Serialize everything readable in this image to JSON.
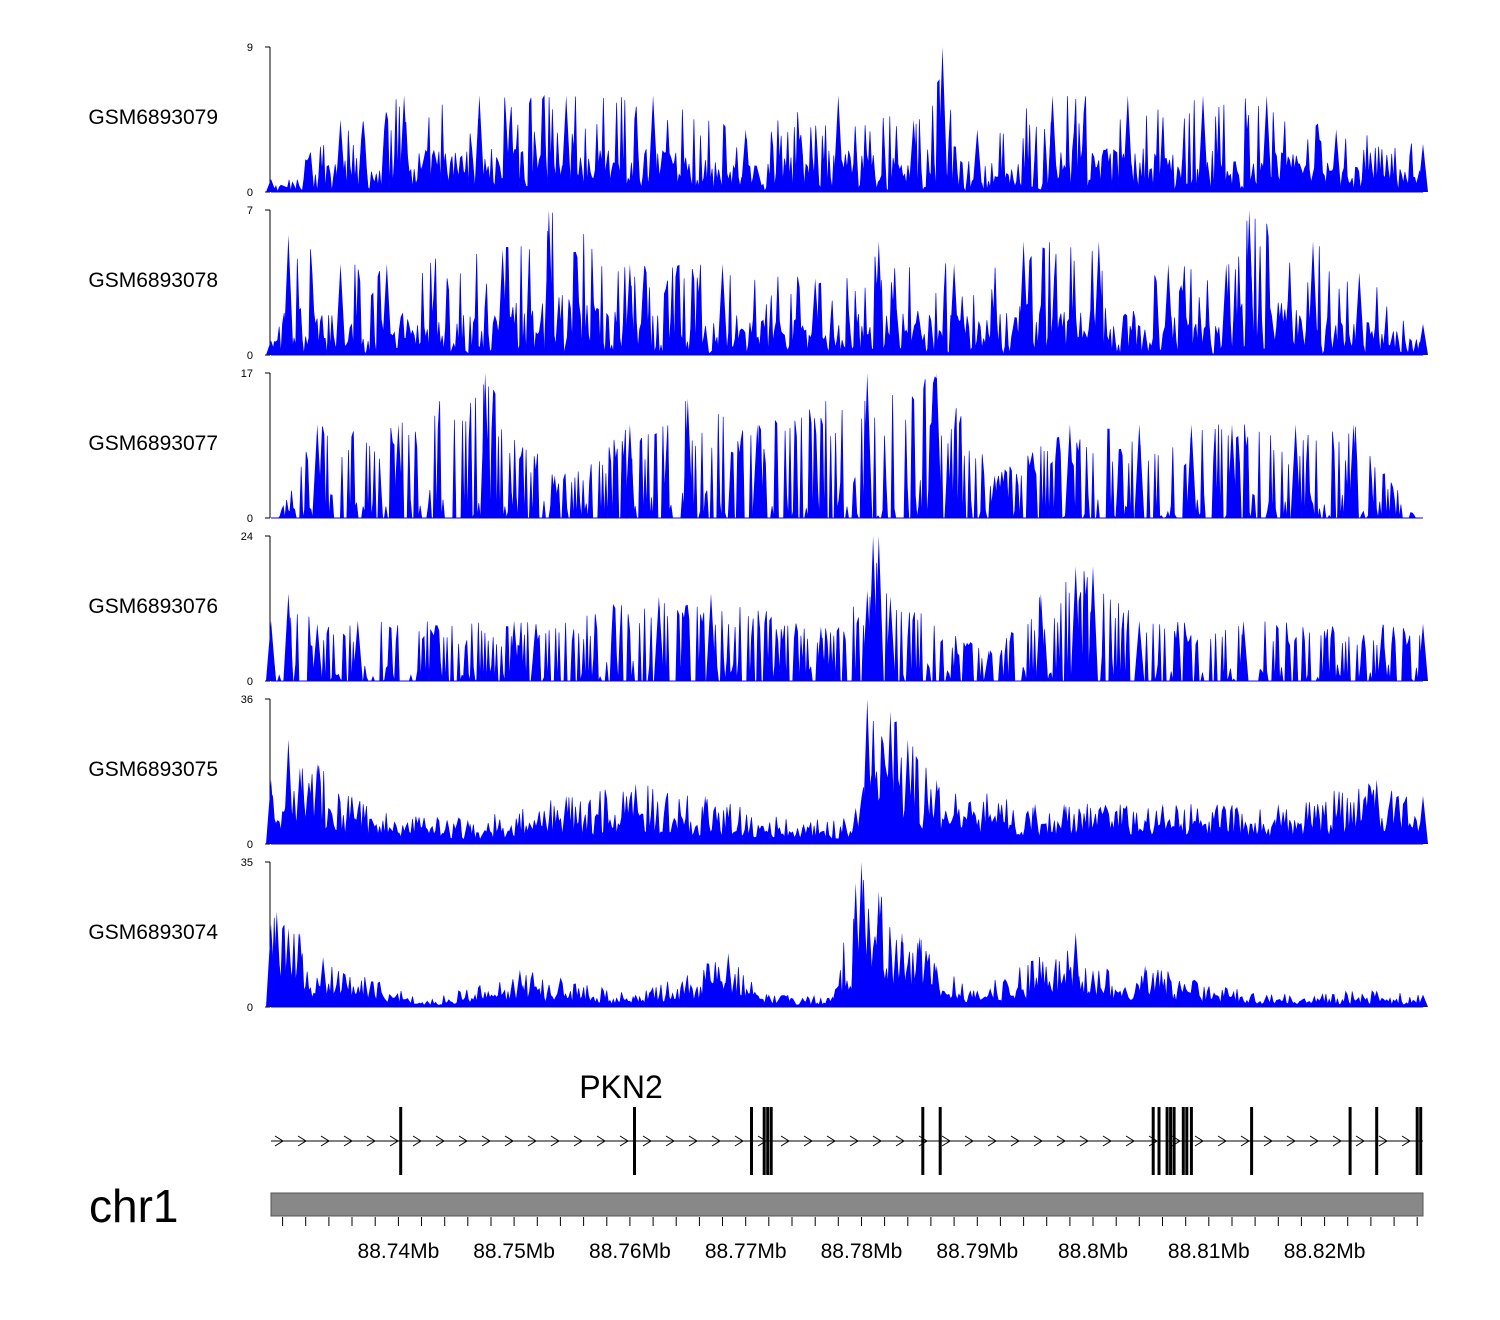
{
  "chart_data": {
    "type": "area",
    "title": "",
    "chromosome": "chr1",
    "xlim": [
      88.729,
      88.8285
    ],
    "x_unit": "Mb",
    "xticks": [
      {
        "value": 88.74,
        "label": "88.74Mb"
      },
      {
        "value": 88.75,
        "label": "88.75Mb"
      },
      {
        "value": 88.76,
        "label": "88.76Mb"
      },
      {
        "value": 88.77,
        "label": "88.77Mb"
      },
      {
        "value": 88.78,
        "label": "88.78Mb"
      },
      {
        "value": 88.79,
        "label": "88.79Mb"
      },
      {
        "value": 88.8,
        "label": "88.8Mb"
      },
      {
        "value": 88.81,
        "label": "88.81Mb"
      },
      {
        "value": 88.82,
        "label": "88.82Mb"
      }
    ],
    "color": "#0000FF",
    "tracks": [
      {
        "name": "GSM6893079",
        "ylim": [
          0,
          9
        ],
        "x": [
          88.729,
          88.735,
          88.7405,
          88.747,
          88.7545,
          88.762,
          88.77,
          88.778,
          88.7845,
          88.787,
          88.79,
          88.7965,
          88.803,
          88.8095,
          88.815,
          88.821,
          88.8285
        ],
        "y": [
          0.8,
          4.5,
          6.0,
          6.0,
          6.0,
          6.0,
          3.9,
          6.0,
          4.5,
          9.0,
          3.9,
          6.0,
          6.0,
          6.0,
          6.0,
          3.9,
          3.0
        ]
      },
      {
        "name": "GSM6893078",
        "ylim": [
          0,
          7
        ],
        "x": [
          88.729,
          88.7305,
          88.735,
          88.739,
          88.749,
          88.753,
          88.76,
          88.768,
          88.776,
          88.7815,
          88.788,
          88.794,
          88.8005,
          88.8065,
          88.8115,
          88.8135,
          88.819,
          88.823,
          88.8285
        ],
        "y": [
          0.7,
          5.8,
          4.4,
          4.4,
          5.1,
          7.0,
          4.4,
          4.4,
          3.7,
          5.5,
          4.4,
          5.5,
          5.5,
          4.4,
          4.4,
          7.0,
          5.5,
          4.0,
          1.5
        ]
      },
      {
        "name": "GSM6893077",
        "ylim": [
          0,
          17
        ],
        "x": [
          88.7295,
          88.733,
          88.74,
          88.7475,
          88.7535,
          88.76,
          88.765,
          88.771,
          88.7805,
          88.7865,
          88.7915,
          88.798,
          88.804,
          88.8085,
          88.812,
          88.8175,
          88.8225,
          88.828
        ],
        "y": [
          0,
          11.0,
          11.0,
          17.0,
          5.0,
          11.0,
          14.0,
          11.0,
          17.0,
          17.0,
          5.0,
          11.0,
          11.0,
          11.0,
          11.0,
          11.0,
          11.0,
          0
        ]
      },
      {
        "name": "GSM6893076",
        "ylim": [
          0,
          24
        ],
        "x": [
          88.729,
          88.7305,
          88.733,
          88.7365,
          88.75,
          88.7625,
          88.767,
          88.7765,
          88.7805,
          88.781,
          88.7815,
          88.7825,
          88.791,
          88.7955,
          88.7985,
          88.8,
          88.804,
          88.813,
          88.825,
          88.8285
        ],
        "y": [
          10.0,
          14.5,
          9.5,
          10.0,
          10.0,
          14.0,
          14.5,
          9.0,
          15.0,
          24.0,
          24.0,
          14.0,
          5.0,
          14.5,
          19.0,
          19.0,
          10.0,
          10.0,
          9.5,
          9.5
        ]
      },
      {
        "name": "GSM6893075",
        "ylim": [
          0,
          36
        ],
        "x": [
          88.729,
          88.7305,
          88.7315,
          88.733,
          88.736,
          88.746,
          88.7545,
          88.7605,
          88.7665,
          88.775,
          88.7795,
          88.7805,
          88.7825,
          88.784,
          88.7865,
          88.795,
          88.7975,
          88.806,
          88.816,
          88.8245,
          88.8285
        ],
        "y": [
          16.0,
          26.0,
          19.0,
          20.0,
          12.0,
          6.0,
          12.0,
          15.0,
          12.0,
          5.0,
          9.0,
          36.0,
          33.0,
          26.0,
          16.0,
          10.0,
          10.0,
          10.0,
          10.0,
          16.0,
          12.0
        ]
      },
      {
        "name": "GSM6893074",
        "ylim": [
          0,
          35
        ],
        "x": [
          88.729,
          88.7295,
          88.7305,
          88.7315,
          88.7335,
          88.7425,
          88.7505,
          88.7605,
          88.7685,
          88.772,
          88.7775,
          88.7795,
          88.78,
          88.7815,
          88.7835,
          88.785,
          88.7865,
          88.79,
          88.7985,
          88.8,
          88.8045,
          88.815,
          88.8245,
          88.8285
        ],
        "y": [
          20.0,
          23.0,
          19.0,
          18.0,
          12.0,
          1.5,
          9.0,
          3.0,
          13.0,
          3.0,
          2.5,
          30.0,
          35.0,
          28.0,
          18.0,
          17.0,
          10.0,
          4.0,
          18.0,
          9.0,
          10.0,
          3.0,
          4.0,
          3.0
        ]
      }
    ],
    "gene_track": {
      "name": "PKN2",
      "strand": "+",
      "exons": [
        88.7402,
        88.7604,
        88.7705,
        88.7716,
        88.7719,
        88.7722,
        88.7853,
        88.7868,
        88.8052,
        88.8057,
        88.8064,
        88.8067,
        88.807,
        88.8078,
        88.8081,
        88.8085,
        88.8137,
        88.8222,
        88.8245,
        88.828,
        88.8283
      ]
    }
  }
}
